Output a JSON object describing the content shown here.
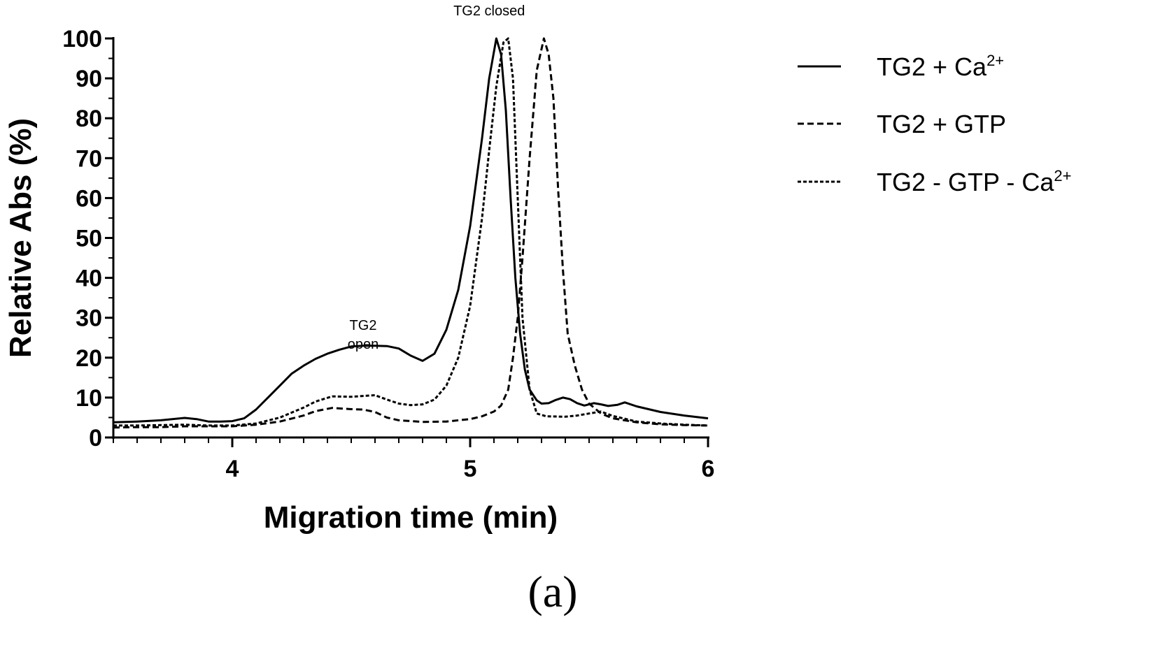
{
  "chart_data": {
    "type": "line",
    "xlabel": "Migration time (min)",
    "ylabel": "Relative Abs (%)",
    "xlim": [
      3.5,
      6
    ],
    "ylim": [
      0,
      100
    ],
    "x_ticks": [
      "4",
      "5",
      "6"
    ],
    "x_tick_values": [
      4,
      5,
      6
    ],
    "x_minor_step": 0.1,
    "y_ticks": [
      "0",
      "10",
      "20",
      "30",
      "40",
      "50",
      "60",
      "70",
      "80",
      "90",
      "100"
    ],
    "y_tick_values": [
      0,
      10,
      20,
      30,
      40,
      50,
      60,
      70,
      80,
      90,
      100
    ],
    "grid": false,
    "legend_position": "right",
    "annotations": [
      {
        "lines": [
          "TG2",
          "open"
        ],
        "x": 4.55,
        "y": 27
      },
      {
        "lines": [
          "TG2 closed"
        ],
        "x": 5.08,
        "y": 105
      }
    ],
    "panel_label": "(a)",
    "series": [
      {
        "legend_main": "TG2 + Ca",
        "legend_sup": "2+",
        "dash": "solid",
        "points": [
          [
            3.5,
            3.8
          ],
          [
            3.6,
            4.0
          ],
          [
            3.7,
            4.3
          ],
          [
            3.8,
            4.9
          ],
          [
            3.85,
            4.6
          ],
          [
            3.9,
            4.0
          ],
          [
            3.95,
            4.0
          ],
          [
            4.0,
            4.1
          ],
          [
            4.05,
            4.8
          ],
          [
            4.1,
            7.0
          ],
          [
            4.15,
            10.0
          ],
          [
            4.2,
            13.0
          ],
          [
            4.25,
            16.0
          ],
          [
            4.3,
            18.0
          ],
          [
            4.35,
            19.7
          ],
          [
            4.4,
            21.0
          ],
          [
            4.45,
            22.0
          ],
          [
            4.5,
            22.8
          ],
          [
            4.55,
            23.0
          ],
          [
            4.6,
            23.0
          ],
          [
            4.65,
            22.9
          ],
          [
            4.7,
            22.3
          ],
          [
            4.75,
            20.5
          ],
          [
            4.8,
            19.2
          ],
          [
            4.85,
            21.0
          ],
          [
            4.9,
            27.0
          ],
          [
            4.95,
            37.0
          ],
          [
            5.0,
            53.0
          ],
          [
            5.05,
            75.0
          ],
          [
            5.08,
            90.0
          ],
          [
            5.11,
            100.0
          ],
          [
            5.13,
            96.0
          ],
          [
            5.15,
            82.0
          ],
          [
            5.17,
            60.0
          ],
          [
            5.19,
            40.0
          ],
          [
            5.21,
            26.0
          ],
          [
            5.23,
            17.0
          ],
          [
            5.25,
            12.0
          ],
          [
            5.28,
            9.3
          ],
          [
            5.3,
            8.5
          ],
          [
            5.33,
            8.6
          ],
          [
            5.36,
            9.4
          ],
          [
            5.39,
            10.0
          ],
          [
            5.42,
            9.6
          ],
          [
            5.45,
            8.6
          ],
          [
            5.48,
            8.0
          ],
          [
            5.52,
            8.6
          ],
          [
            5.55,
            8.3
          ],
          [
            5.58,
            7.9
          ],
          [
            5.62,
            8.2
          ],
          [
            5.65,
            8.8
          ],
          [
            5.7,
            7.8
          ],
          [
            5.8,
            6.4
          ],
          [
            5.9,
            5.5
          ],
          [
            6.0,
            4.8
          ]
        ]
      },
      {
        "legend_main": "TG2 + GTP",
        "legend_sup": "",
        "dash": "dashed",
        "points": [
          [
            3.5,
            2.5
          ],
          [
            3.6,
            2.6
          ],
          [
            3.7,
            2.6
          ],
          [
            3.8,
            2.8
          ],
          [
            3.9,
            2.8
          ],
          [
            4.0,
            2.8
          ],
          [
            4.1,
            3.2
          ],
          [
            4.2,
            4.0
          ],
          [
            4.3,
            5.5
          ],
          [
            4.35,
            6.6
          ],
          [
            4.42,
            7.4
          ],
          [
            4.5,
            7.1
          ],
          [
            4.55,
            7.0
          ],
          [
            4.6,
            6.4
          ],
          [
            4.65,
            5.0
          ],
          [
            4.7,
            4.3
          ],
          [
            4.8,
            3.9
          ],
          [
            4.9,
            4.0
          ],
          [
            5.0,
            4.6
          ],
          [
            5.05,
            5.3
          ],
          [
            5.1,
            6.5
          ],
          [
            5.13,
            8.0
          ],
          [
            5.16,
            12.0
          ],
          [
            5.18,
            20.0
          ],
          [
            5.2,
            30.0
          ],
          [
            5.22,
            45.0
          ],
          [
            5.25,
            70.0
          ],
          [
            5.28,
            92.0
          ],
          [
            5.31,
            100.0
          ],
          [
            5.33,
            96.0
          ],
          [
            5.35,
            85.0
          ],
          [
            5.37,
            62.0
          ],
          [
            5.39,
            42.0
          ],
          [
            5.41,
            26.0
          ],
          [
            5.44,
            18.0
          ],
          [
            5.47,
            12.0
          ],
          [
            5.5,
            8.5
          ],
          [
            5.55,
            6.0
          ],
          [
            5.6,
            4.8
          ],
          [
            5.7,
            3.8
          ],
          [
            5.8,
            3.3
          ],
          [
            5.9,
            3.1
          ],
          [
            6.0,
            3.0
          ]
        ]
      },
      {
        "legend_main": "TG2 - GTP - Ca",
        "legend_sup": "2+",
        "dash": "dotted",
        "points": [
          [
            3.5,
            3.0
          ],
          [
            3.6,
            3.0
          ],
          [
            3.7,
            3.1
          ],
          [
            3.8,
            3.2
          ],
          [
            3.9,
            3.0
          ],
          [
            4.0,
            3.0
          ],
          [
            4.1,
            3.5
          ],
          [
            4.2,
            5.0
          ],
          [
            4.3,
            7.5
          ],
          [
            4.35,
            9.0
          ],
          [
            4.42,
            10.3
          ],
          [
            4.5,
            10.2
          ],
          [
            4.55,
            10.4
          ],
          [
            4.6,
            10.6
          ],
          [
            4.65,
            9.5
          ],
          [
            4.7,
            8.5
          ],
          [
            4.75,
            8.1
          ],
          [
            4.8,
            8.3
          ],
          [
            4.85,
            9.5
          ],
          [
            4.9,
            13.0
          ],
          [
            4.95,
            20.0
          ],
          [
            5.0,
            33.0
          ],
          [
            5.05,
            55.0
          ],
          [
            5.08,
            72.0
          ],
          [
            5.11,
            88.0
          ],
          [
            5.14,
            99.0
          ],
          [
            5.16,
            100.0
          ],
          [
            5.18,
            90.0
          ],
          [
            5.2,
            60.0
          ],
          [
            5.22,
            30.0
          ],
          [
            5.25,
            12.0
          ],
          [
            5.28,
            6.0
          ],
          [
            5.32,
            5.3
          ],
          [
            5.4,
            5.2
          ],
          [
            5.45,
            5.5
          ],
          [
            5.5,
            6.0
          ],
          [
            5.55,
            6.5
          ],
          [
            5.6,
            5.4
          ],
          [
            5.7,
            4.0
          ],
          [
            5.8,
            3.5
          ],
          [
            5.9,
            3.2
          ],
          [
            6.0,
            3.0
          ]
        ]
      }
    ]
  }
}
